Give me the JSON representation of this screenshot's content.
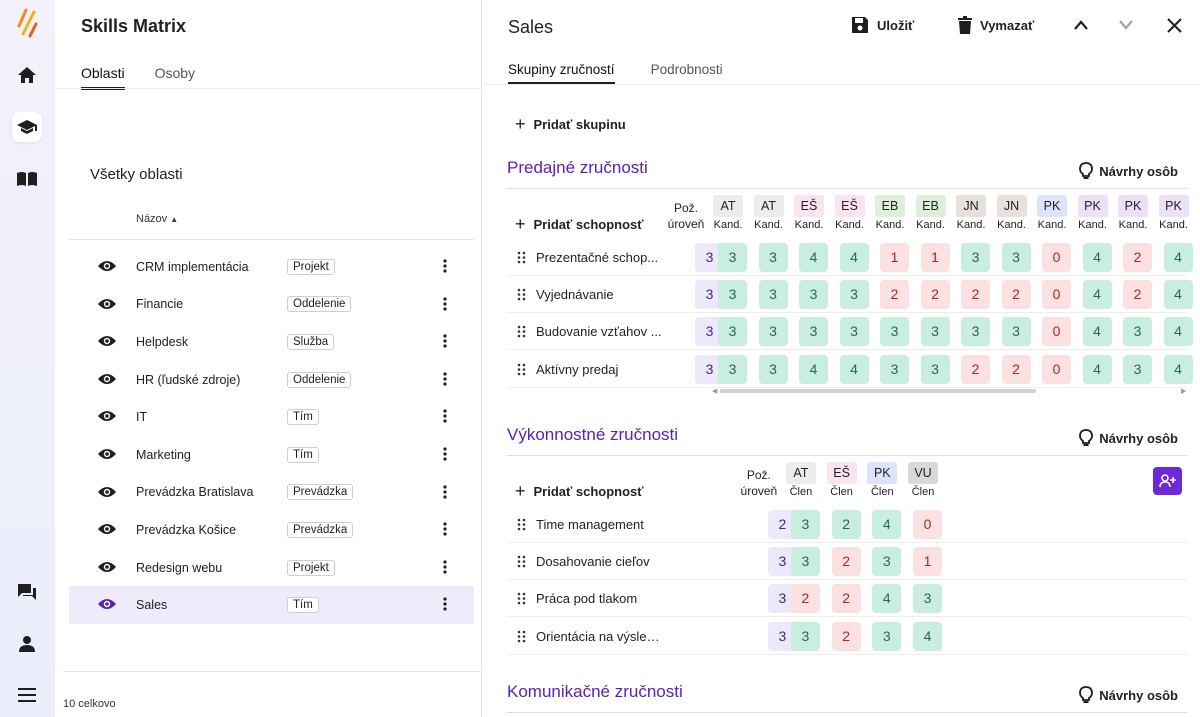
{
  "app": {
    "title": "Skills Matrix"
  },
  "left_tabs": [
    {
      "label": "Oblasti"
    },
    {
      "label": "Osoby"
    }
  ],
  "areas_title": "Všetky oblasti",
  "column_name": "Názov",
  "areas": [
    {
      "name": "CRM implementácia",
      "type": "Projekt"
    },
    {
      "name": "Financie",
      "type": "Oddelenie"
    },
    {
      "name": "Helpdesk",
      "type": "Služba"
    },
    {
      "name": "HR (ľudské zdroje)",
      "type": "Oddelenie"
    },
    {
      "name": "IT",
      "type": "Tím"
    },
    {
      "name": "Marketing",
      "type": "Tím"
    },
    {
      "name": "Prevádzka Bratislava",
      "type": "Prevádzka"
    },
    {
      "name": "Prevádzka Košice",
      "type": "Prevádzka"
    },
    {
      "name": "Redesign webu",
      "type": "Projekt"
    },
    {
      "name": "Sales",
      "type": "Tím"
    }
  ],
  "footer_count": "10 celkovo",
  "detail": {
    "title": "Sales",
    "save_label": "Uložiť",
    "delete_label": "Vymazať",
    "tabs": [
      {
        "label": "Skupiny zručností"
      },
      {
        "label": "Podrobnosti"
      }
    ],
    "add_group_label": "Pridať skupinu",
    "add_skill_label": "Pridať schopnosť",
    "suggest_label": "Návrhy osôb",
    "level_header_1": "Pož.",
    "level_header_2": "úroveň"
  },
  "groups": [
    {
      "title": "Predajné zručnosti",
      "people": [
        {
          "initials": "AT",
          "role": "Kand.",
          "color": "#ececec"
        },
        {
          "initials": "AT",
          "role": "Kand.",
          "color": "#ececec"
        },
        {
          "initials": "EŠ",
          "role": "Kand.",
          "color": "#fbe3f1"
        },
        {
          "initials": "EŠ",
          "role": "Kand.",
          "color": "#fbe3f1"
        },
        {
          "initials": "EB",
          "role": "Kand.",
          "color": "#dff0da"
        },
        {
          "initials": "EB",
          "role": "Kand.",
          "color": "#dff0da"
        },
        {
          "initials": "JN",
          "role": "Kand.",
          "color": "#e8e0dc"
        },
        {
          "initials": "JN",
          "role": "Kand.",
          "color": "#e8e0dc"
        },
        {
          "initials": "PK",
          "role": "Kand.",
          "color": "#dde3fb"
        },
        {
          "initials": "PK",
          "role": "Kand.",
          "color": "#ede0f7"
        },
        {
          "initials": "PK",
          "role": "Kand.",
          "color": "#ede0f7"
        },
        {
          "initials": "PK",
          "role": "Kand.",
          "color": "#ede0f7"
        }
      ],
      "skills": [
        {
          "name": "Prezentačné schop...",
          "level": "3",
          "values": [
            "3",
            "3",
            "4",
            "4",
            "1",
            "1",
            "3",
            "3",
            "0",
            "4",
            "2",
            "4"
          ]
        },
        {
          "name": "Vyjednávanie",
          "level": "3",
          "values": [
            "3",
            "3",
            "3",
            "3",
            "2",
            "2",
            "2",
            "2",
            "0",
            "4",
            "2",
            "4"
          ]
        },
        {
          "name": "Budovanie vzťahov ...",
          "level": "3",
          "values": [
            "3",
            "3",
            "3",
            "3",
            "3",
            "3",
            "3",
            "3",
            "0",
            "4",
            "3",
            "4"
          ]
        },
        {
          "name": "Aktívny predaj",
          "level": "3",
          "values": [
            "3",
            "3",
            "4",
            "4",
            "3",
            "3",
            "2",
            "2",
            "0",
            "4",
            "3",
            "4"
          ]
        }
      ]
    },
    {
      "title": "Výkonnostné zručnosti",
      "people": [
        {
          "initials": "AT",
          "role": "Člen",
          "color": "#ececec"
        },
        {
          "initials": "EŠ",
          "role": "Člen",
          "color": "#fbe3f1"
        },
        {
          "initials": "PK",
          "role": "Člen",
          "color": "#dde3fb"
        },
        {
          "initials": "VU",
          "role": "Člen",
          "color": "#d8d8d8"
        }
      ],
      "skills": [
        {
          "name": "Time management",
          "level": "2",
          "values": [
            "3",
            "2",
            "4",
            "0"
          ]
        },
        {
          "name": "Dosahovanie cieľov",
          "level": "3",
          "values": [
            "3",
            "2",
            "3",
            "1"
          ]
        },
        {
          "name": "Práca pod tlakom",
          "level": "3",
          "values": [
            "2",
            "2",
            "4",
            "3"
          ]
        },
        {
          "name": "Orientácia na výsledky",
          "level": "3",
          "values": [
            "3",
            "2",
            "3",
            "4"
          ]
        }
      ]
    },
    {
      "title": "Komunikačné zručnosti",
      "people": [],
      "skills": []
    }
  ],
  "colors": {
    "accent": "#5b21b6",
    "good": "#c9eedf",
    "bad": "#fbe1e1",
    "level": "#ede9fb"
  }
}
